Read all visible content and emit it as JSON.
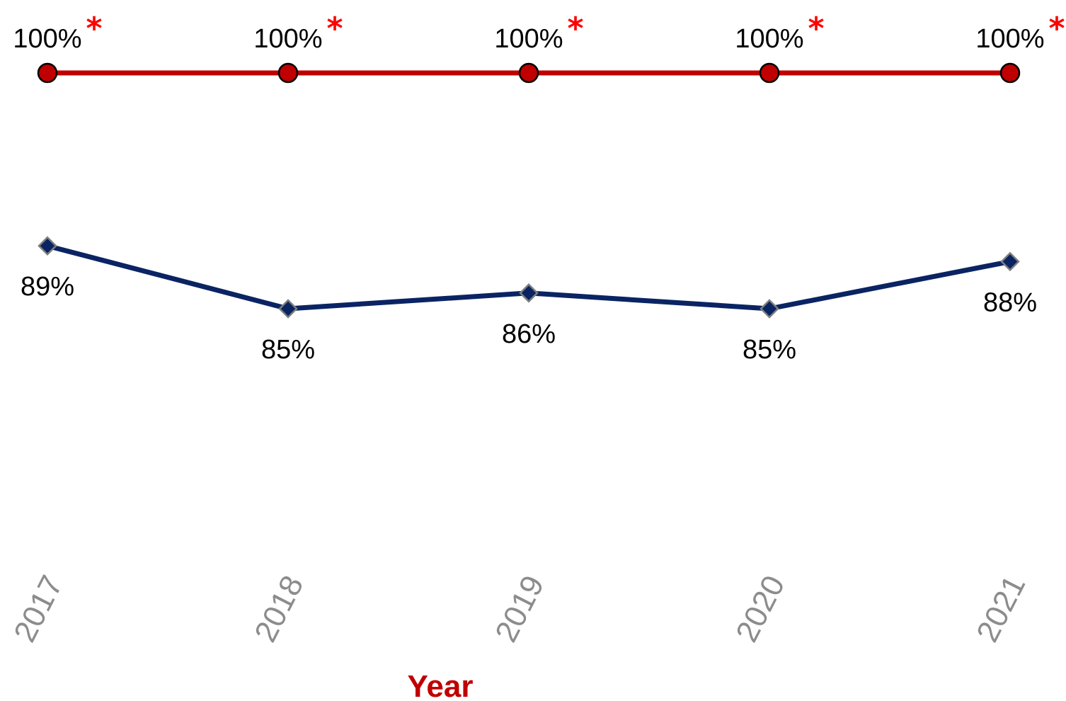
{
  "chart_data": {
    "type": "line",
    "categories": [
      "2017",
      "2018",
      "2019",
      "2020",
      "2021"
    ],
    "xlabel": "Year",
    "ylabel": "",
    "title": "",
    "ylim": [
      70,
      100
    ],
    "grid": false,
    "legend": "none",
    "series": [
      {
        "values": [
          100,
          100,
          100,
          100,
          100
        ],
        "labels": [
          "100%",
          "100%",
          "100%",
          "100%",
          "100%"
        ],
        "annotations": [
          "*",
          "*",
          "*",
          "*",
          "*"
        ],
        "color": "#c00000",
        "marker": "circle",
        "label_position": "above"
      },
      {
        "values": [
          89,
          85,
          86,
          85,
          88
        ],
        "labels": [
          "89%",
          "85%",
          "86%",
          "85%",
          "88%"
        ],
        "color": "#0a2463",
        "marker": "diamond",
        "label_position": "below"
      }
    ],
    "colors": {
      "annotation": "#ff0000",
      "tick_label": "#8c8c8c",
      "axis_title": "#c00000",
      "marker_outline_red": "#000000",
      "marker_outline_navy": "#7f7f7f"
    }
  }
}
